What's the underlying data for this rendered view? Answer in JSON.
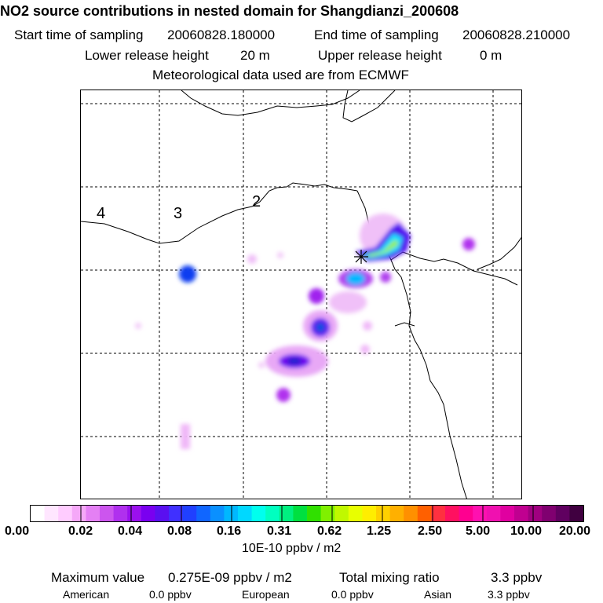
{
  "header": {
    "title": "NO2 source contributions in nested domain for Shangdianzi_200608",
    "start_label": "Start time of sampling",
    "start_value": "20060828.180000",
    "end_label": "End time of sampling",
    "end_value": "20060828.210000",
    "lower_label": "Lower release height",
    "lower_value": "20 m",
    "upper_label": "Upper release height",
    "upper_value": "0 m",
    "met_line": "Meteorological data used are from ECMWF"
  },
  "map": {
    "region_labels": [
      "4",
      "3",
      "2"
    ],
    "receptor_marker": "asterisk-marker"
  },
  "colorbar": {
    "ticks": [
      "0.00",
      "0.02",
      "0.04",
      "0.08",
      "0.16",
      "0.31",
      "0.62",
      "1.25",
      "2.50",
      "5.00",
      "10.00",
      "20.00"
    ],
    "unit": "10E-10 ppbv / m2",
    "colors": [
      "#ffffff",
      "#ffe6ff",
      "#ffccff",
      "#f5a8f8",
      "#e480f4",
      "#cc55ee",
      "#b030ee",
      "#9a10ee",
      "#7a00f0",
      "#5a10f0",
      "#4030ff",
      "#2040ff",
      "#1066ff",
      "#0a90ff",
      "#00b8ff",
      "#00d8ff",
      "#00ffee",
      "#00ffc0",
      "#00f080",
      "#00e040",
      "#30e000",
      "#80f000",
      "#c0f800",
      "#e8ff00",
      "#ffee00",
      "#ffd000",
      "#ffb000",
      "#ff9000",
      "#ff6000",
      "#ff3040",
      "#ff1060",
      "#ff0090",
      "#ff10b0",
      "#f010b0",
      "#e000a0",
      "#c00090",
      "#a00080",
      "#800070",
      "#600060",
      "#400040"
    ]
  },
  "footer": {
    "max_label": "Maximum value",
    "max_value": "0.275E-09 ppbv / m2",
    "total_label": "Total mixing ratio",
    "total_value": "3.3 ppbv",
    "american_label": "American",
    "american_value": "0.0 ppbv",
    "european_label": "European",
    "european_value": "0.0 ppbv",
    "asian_label": "Asian",
    "asian_value": "3.3 ppbv"
  }
}
